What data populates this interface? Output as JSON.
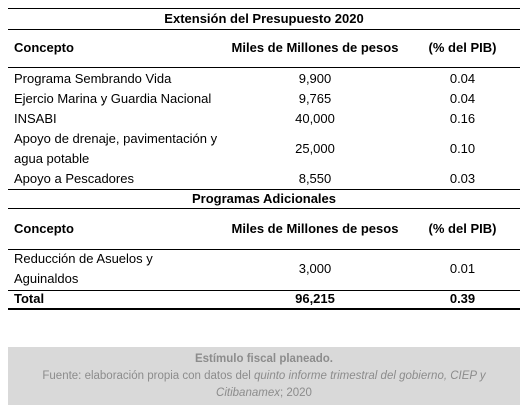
{
  "title": "Extensión del Presupuesto 2020",
  "header": [
    "Concepto",
    "Miles de Millones de pesos",
    "(% del PIB)"
  ],
  "rows": [
    [
      "Programa Sembrando Vida",
      "9,900",
      "0.04"
    ],
    [
      "Ejercio Marina y Guardia Nacional",
      "9,765",
      "0.04"
    ],
    [
      "INSABI",
      "40,000",
      "0.16"
    ],
    [
      "Apoyo de drenaje, pavimentación y agua potable",
      "25,000",
      "0.10"
    ],
    [
      "Apoyo a Pescadores",
      "8,550",
      "0.03"
    ]
  ],
  "section2": {
    "title": "Programas Adicionales",
    "header": [
      "Concepto",
      "Miles de Millones de pesos",
      "(% del PIB)"
    ],
    "rows": [
      [
        "Reducción de Asuelos y Aguinaldos",
        "3,000",
        "0.01"
      ]
    ]
  },
  "total": [
    "Total",
    "96,215",
    "0.39"
  ],
  "note": {
    "title": "Estímulo fiscal planeado.",
    "source": [
      "Fuente: elaboración propia con datos del ",
      "quinto informe trimestral del gobierno, CIEP y Citibanamex",
      "; 2020"
    ]
  }
}
